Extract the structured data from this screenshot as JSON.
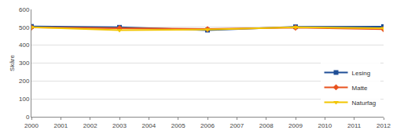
{
  "chart_data": {
    "type": "line",
    "y_label": "Skåre",
    "x": [
      2000,
      2003,
      2006,
      2009,
      2012
    ],
    "series": [
      {
        "name": "Lesing",
        "color": "#1f4e96",
        "marker": "square",
        "line_style": "solid",
        "values": [
          505,
          500,
          484,
          503,
          504
        ]
      },
      {
        "name": "Matte",
        "color": "#e8531f",
        "marker": "diamond",
        "line_style": "solid",
        "values": [
          499,
          495,
          490,
          498,
          489
        ]
      },
      {
        "name": "Naturfag",
        "color": "#f2c500",
        "marker": "triangle-down",
        "line_style": "solid",
        "values": [
          500,
          484,
          487,
          500,
          495
        ]
      }
    ],
    "xlim": [
      2000,
      2012
    ],
    "xticks": [
      2000,
      2001,
      2002,
      2003,
      2004,
      2005,
      2006,
      2007,
      2008,
      2009,
      2010,
      2011,
      2012
    ],
    "ylim": [
      0,
      600
    ],
    "yticks": [
      0,
      100,
      200,
      300,
      400,
      500,
      600
    ],
    "grid": true,
    "legend": "bottom-right"
  }
}
